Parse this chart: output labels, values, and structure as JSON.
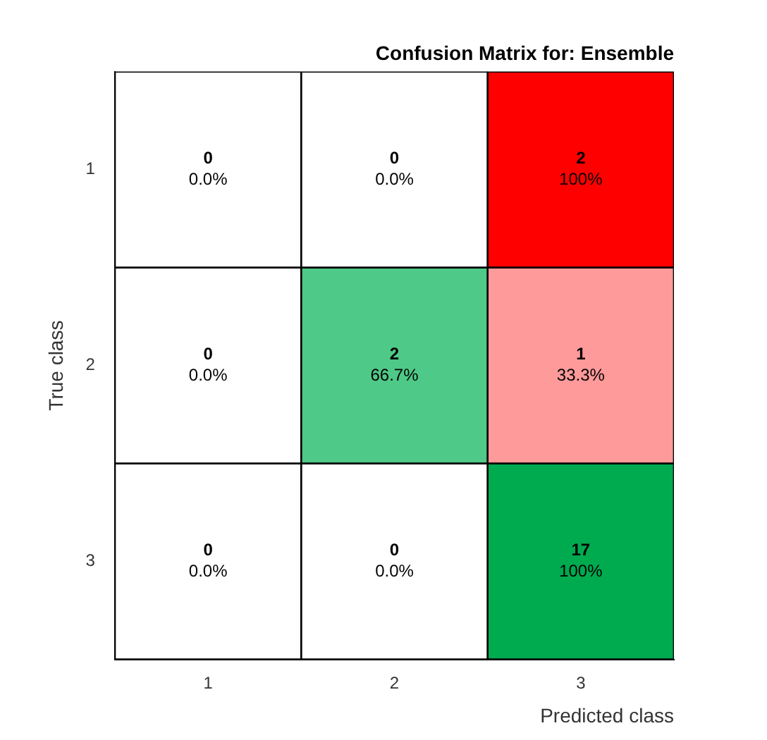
{
  "chart_data": {
    "type": "heatmap",
    "title": "Confusion Matrix for: Ensemble",
    "xlabel": "Predicted class",
    "ylabel": "True class",
    "categories": [
      "1",
      "2",
      "3"
    ],
    "y_categories": [
      "1",
      "2",
      "3"
    ],
    "cells": [
      [
        0,
        0,
        2
      ],
      [
        0,
        2,
        1
      ],
      [
        0,
        0,
        17
      ]
    ],
    "data_labels": true,
    "annotations": [
      "0.0%",
      "0.0%",
      "100%",
      "0.0%",
      "66.7%",
      "33.3%",
      "0.0%",
      "0.0%",
      "100%"
    ],
    "colors": [
      [
        "#ffffff",
        "#ffffff",
        "#ff0000"
      ],
      [
        "#ffffff",
        "#4fc987",
        "#ff9a9a"
      ],
      [
        "#ffffff",
        "#ffffff",
        "#00aa4f"
      ]
    ],
    "grid": false,
    "legend": false
  }
}
